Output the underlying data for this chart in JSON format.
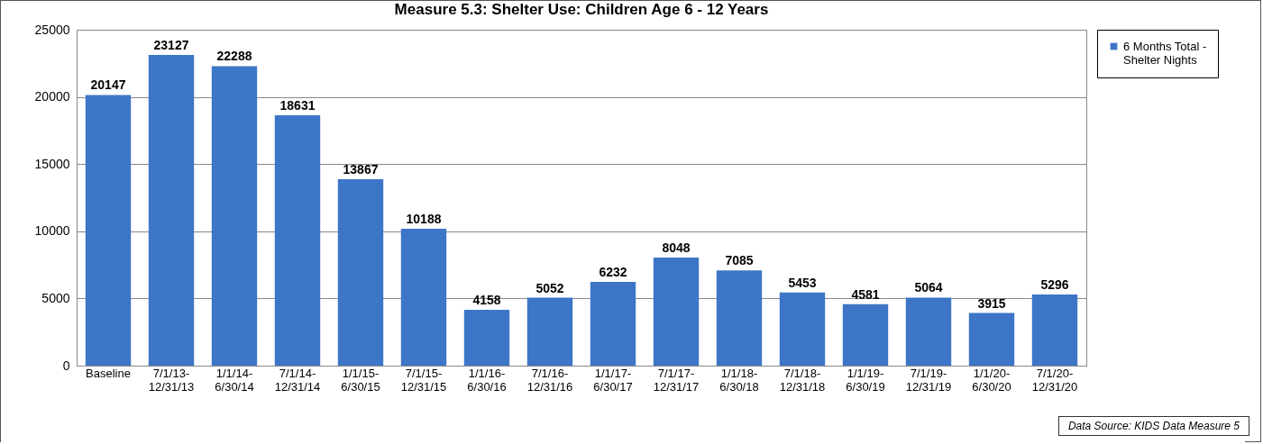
{
  "chart_data": {
    "type": "bar",
    "title": "Measure 5.3: Shelter Use:  Children Age 6 - 12 Years",
    "categories": [
      "Baseline",
      "7/1/13-12/31/13",
      "1/1/14-6/30/14",
      "7/1/14-12/31/14",
      "1/1/15-6/30/15",
      "7/1/15-12/31/15",
      "1/1/16-6/30/16",
      "7/1/16-12/31/16",
      "1/1/17-6/30/17",
      "7/1/17-12/31/17",
      "1/1/18-6/30/18",
      "7/1/18-12/31/18",
      "1/1/19-6/30/19",
      "7/1/19-12/31/19",
      "1/1/20-6/30/20",
      "7/1/20-12/31/20"
    ],
    "series": [
      {
        "name": "6 Months Total - Shelter Nights",
        "color": "#3d76c6",
        "values": [
          20147,
          23127,
          22288,
          18631,
          13867,
          10188,
          4158,
          5052,
          6232,
          8048,
          7085,
          5453,
          4581,
          5064,
          3915,
          5296
        ]
      }
    ],
    "ylim": [
      0,
      25000
    ],
    "yticks": [
      0,
      5000,
      10000,
      15000,
      20000,
      25000
    ],
    "grid": "y",
    "legend": "right",
    "data_labels": true,
    "annotations": [
      "Data Source: KIDS Data Measure 5"
    ]
  }
}
